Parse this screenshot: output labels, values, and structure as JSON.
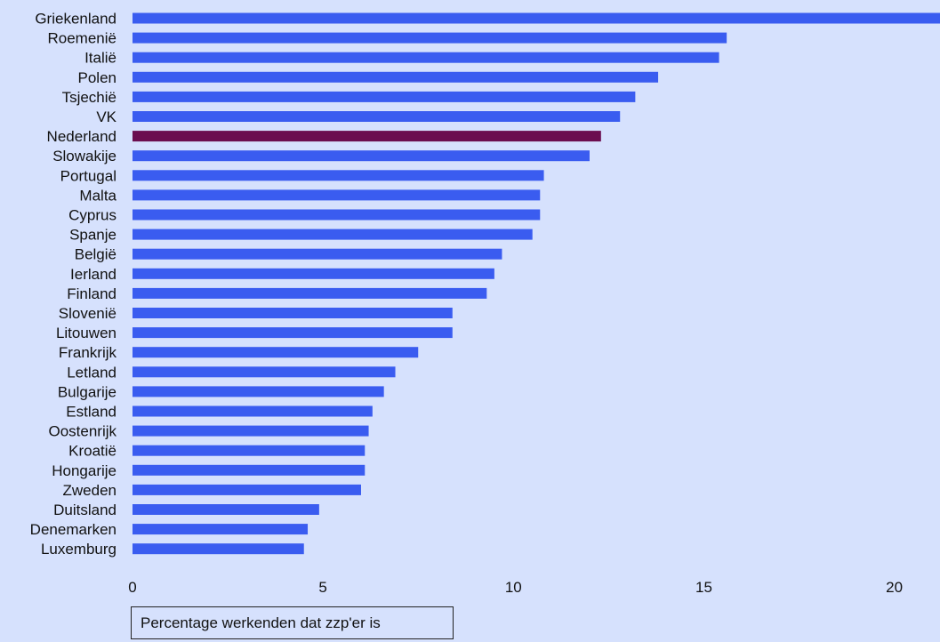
{
  "chart_data": {
    "type": "bar",
    "orientation": "horizontal",
    "categories": [
      "Griekenland",
      "Roemenië",
      "Italië",
      "Polen",
      "Tsjechië",
      "VK",
      "Nederland",
      "Slowakije",
      "Portugal",
      "Malta",
      "Cyprus",
      "Spanje",
      "België",
      "Ierland",
      "Finland",
      "Slovenië",
      "Litouwen",
      "Frankrijk",
      "Letland",
      "Bulgarije",
      "Estland",
      "Oostenrijk",
      "Kroatië",
      "Hongarije",
      "Zweden",
      "Duitsland",
      "Denemarken",
      "Luxemburg"
    ],
    "values": [
      21.5,
      15.6,
      15.4,
      13.8,
      13.2,
      12.8,
      12.3,
      12.0,
      10.8,
      10.7,
      10.7,
      10.5,
      9.7,
      9.5,
      9.3,
      8.4,
      8.4,
      7.5,
      6.9,
      6.6,
      6.3,
      6.2,
      6.1,
      6.1,
      6.0,
      4.9,
      4.6,
      4.5
    ],
    "highlight": "Nederland",
    "xlim": [
      0,
      21.2
    ],
    "xticks": [
      0,
      5,
      10,
      15,
      20
    ],
    "xlabel": "Percentage werkenden dat zzp'er is",
    "ylabel": "",
    "grid": false,
    "colors": {
      "bar": "#3a5cf0",
      "highlight": "#6b0d4f",
      "background": "#d6e1fd"
    }
  }
}
